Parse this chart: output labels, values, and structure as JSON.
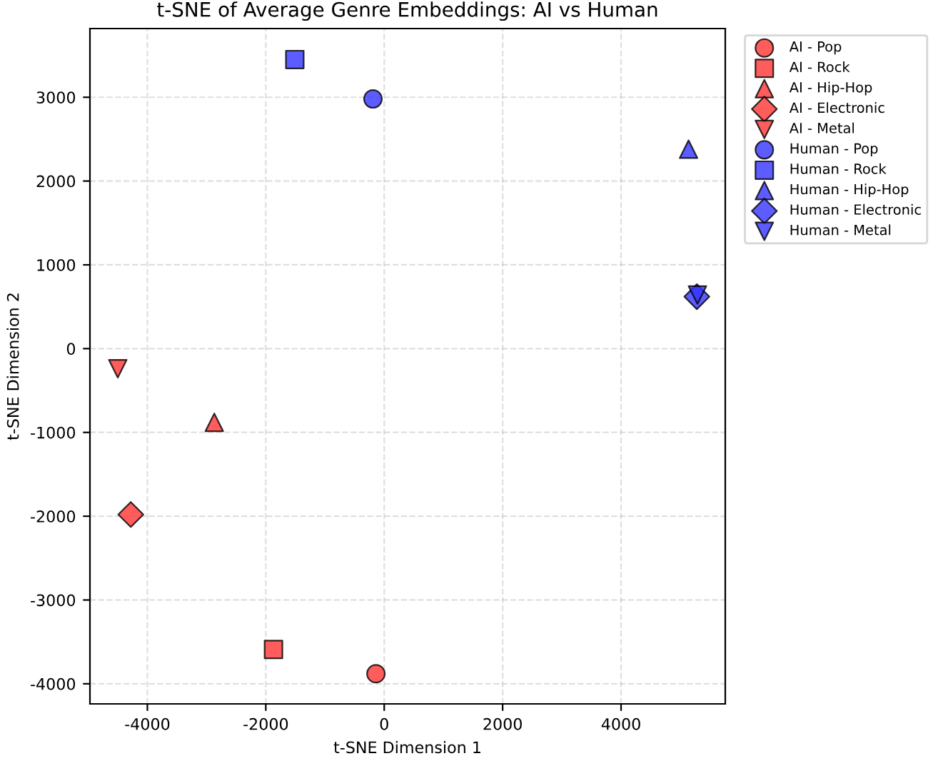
{
  "chart_data": {
    "type": "scatter",
    "title": "t-SNE of Average Genre Embeddings: AI vs Human",
    "xlabel": "t-SNE Dimension 1",
    "ylabel": "t-SNE Dimension 2",
    "xlim": [
      -4970,
      5760
    ],
    "ylim": [
      -4240,
      3820
    ],
    "xticks": [
      -4000,
      -2000,
      0,
      2000,
      4000
    ],
    "yticks": [
      -4000,
      -3000,
      -2000,
      -1000,
      0,
      1000,
      2000,
      3000
    ],
    "grid": true,
    "legend": "top right",
    "series": [
      {
        "name": "AI - Pop",
        "color": "#ff3333",
        "marker": "circle",
        "x": [
          -140
        ],
        "values": [
          -3880
        ]
      },
      {
        "name": "AI - Rock",
        "color": "#ff3333",
        "marker": "square",
        "x": [
          -1870
        ],
        "values": [
          -3590
        ]
      },
      {
        "name": "AI - Hip-Hop",
        "color": "#ff3333",
        "marker": "triangle",
        "x": [
          -2870
        ],
        "values": [
          -880
        ]
      },
      {
        "name": "AI - Electronic",
        "color": "#ff3333",
        "marker": "diamond",
        "x": [
          -4280
        ],
        "values": [
          -1980
        ]
      },
      {
        "name": "AI - Metal",
        "color": "#ff3333",
        "marker": "triangle_down",
        "x": [
          -4500
        ],
        "values": [
          -240
        ]
      },
      {
        "name": "Human - Pop",
        "color": "#3333ff",
        "marker": "circle",
        "x": [
          -190
        ],
        "values": [
          2980
        ]
      },
      {
        "name": "Human - Rock",
        "color": "#3333ff",
        "marker": "square",
        "x": [
          -1510
        ],
        "values": [
          3450
        ]
      },
      {
        "name": "Human - Hip-Hop",
        "color": "#3333ff",
        "marker": "triangle",
        "x": [
          5140
        ],
        "values": [
          2380
        ]
      },
      {
        "name": "Human - Electronic",
        "color": "#3333ff",
        "marker": "diamond",
        "x": [
          5280
        ],
        "values": [
          620
        ]
      },
      {
        "name": "Human - Metal",
        "color": "#3333ff",
        "marker": "triangle_down",
        "x": [
          5290
        ],
        "values": [
          640
        ]
      }
    ]
  }
}
